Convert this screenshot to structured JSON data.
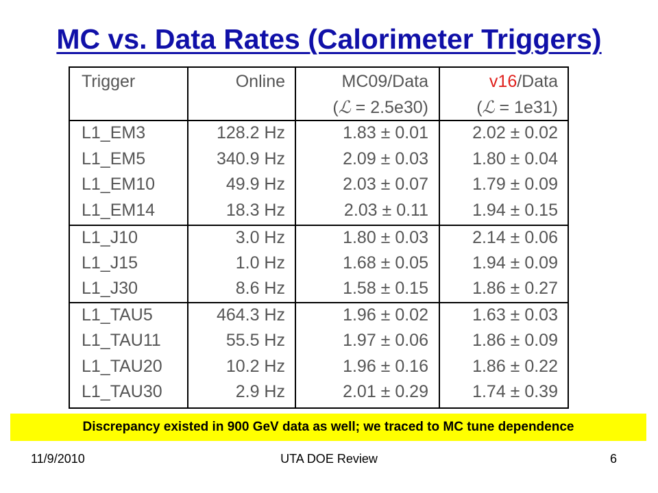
{
  "title": "MC vs. Data Rates (Calorimeter Triggers)",
  "table": {
    "headers": {
      "trigger": "Trigger",
      "online": "Online",
      "mc09": "MC09/Data",
      "mc09_sub_pre": "(",
      "mc09_sub_sym": "ℒ",
      "mc09_sub_post": " = 2.5e30)",
      "v16_red": "v16",
      "v16_rest": "/Data",
      "v16_sub_pre": "(",
      "v16_sub_sym": "ℒ",
      "v16_sub_post": " = 1e31)"
    },
    "rows": [
      {
        "trigger": "L1_EM3",
        "online": "128.2 Hz",
        "mc09": "1.83 ± 0.01",
        "v16": "2.02 ± 0.02"
      },
      {
        "trigger": "L1_EM5",
        "online": "340.9 Hz",
        "mc09": "2.09 ± 0.03",
        "v16": "1.80 ± 0.04"
      },
      {
        "trigger": "L1_EM10",
        "online": "49.9 Hz",
        "mc09": "2.03 ± 0.07",
        "v16": "1.79 ± 0.09"
      },
      {
        "trigger": "L1_EM14",
        "online": "18.3 Hz",
        "mc09": "2.03 ± 0.11",
        "v16": "1.94 ± 0.15"
      },
      {
        "trigger": "L1_J10",
        "online": "3.0 Hz",
        "mc09": "1.80 ± 0.03",
        "v16": "2.14 ± 0.06"
      },
      {
        "trigger": "L1_J15",
        "online": "1.0 Hz",
        "mc09": "1.68 ± 0.05",
        "v16": "1.94 ± 0.09"
      },
      {
        "trigger": "L1_J30",
        "online": "8.6 Hz",
        "mc09": "1.58 ± 0.15",
        "v16": "1.86 ± 0.27"
      },
      {
        "trigger": "L1_TAU5",
        "online": "464.3 Hz",
        "mc09": "1.96 ± 0.02",
        "v16": "1.63 ± 0.03"
      },
      {
        "trigger": "L1_TAU11",
        "online": "55.5 Hz",
        "mc09": "1.97 ± 0.06",
        "v16": "1.86 ± 0.09"
      },
      {
        "trigger": "L1_TAU20",
        "online": "10.2 Hz",
        "mc09": "1.96 ± 0.16",
        "v16": "1.86 ± 0.22"
      },
      {
        "trigger": "L1_TAU30",
        "online": "2.9 Hz",
        "mc09": "2.01 ± 0.29",
        "v16": "1.74 ± 0.39"
      }
    ]
  },
  "note": "Discrepancy existed in 900 GeV data as well; we traced to MC tune dependence",
  "footer": {
    "date": "11/9/2010",
    "center": "UTA DOE Review",
    "page": "6"
  },
  "colors": {
    "title": "#1010a8",
    "highlight": "#ffff00",
    "v16": "#e0201c"
  }
}
